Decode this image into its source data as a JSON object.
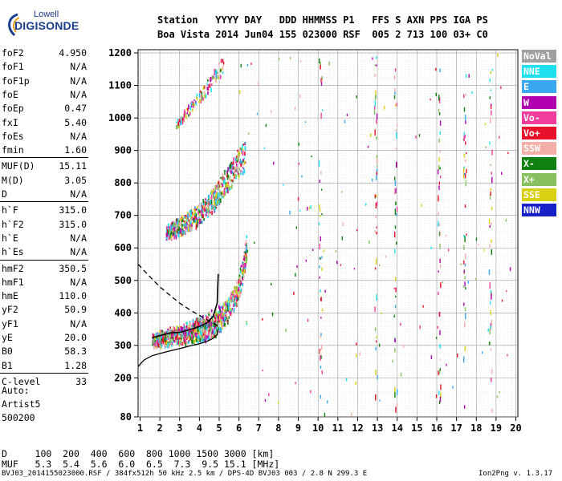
{
  "logo": {
    "top": "Lowell",
    "main": "DIGISONDE"
  },
  "header": {
    "row1": "Station   YYYY DAY   DDD HHMMSS P1   FFS S AXN PPS IGA PS",
    "row2": "Boa Vista 2014 Jun04 155 023000 RSF  005 2 713 100 03+ C0"
  },
  "params": [
    {
      "name": "foF2",
      "value": "4.950"
    },
    {
      "name": "foF1",
      "value": "N/A"
    },
    {
      "name": "foF1p",
      "value": "N/A"
    },
    {
      "name": "foE",
      "value": "N/A"
    },
    {
      "name": "foEp",
      "value": "0.47"
    },
    {
      "name": "fxI",
      "value": "5.40"
    },
    {
      "name": "foEs",
      "value": "N/A"
    },
    {
      "name": "fmin",
      "value": "1.60"
    },
    {
      "name": "MUF(D)",
      "value": "15.11"
    },
    {
      "name": "M(D)",
      "value": "3.05"
    },
    {
      "name": "D",
      "value": "N/A"
    },
    {
      "name": "h`F",
      "value": "315.0"
    },
    {
      "name": "h`F2",
      "value": "315.0"
    },
    {
      "name": "h`E",
      "value": "N/A"
    },
    {
      "name": "h`Es",
      "value": "N/A"
    },
    {
      "name": "hmF2",
      "value": "350.5"
    },
    {
      "name": "hmF1",
      "value": "N/A"
    },
    {
      "name": "hmE",
      "value": "110.0"
    },
    {
      "name": "yF2",
      "value": "50.9"
    },
    {
      "name": "yF1",
      "value": "N/A"
    },
    {
      "name": "yE",
      "value": "20.0"
    },
    {
      "name": "B0",
      "value": "58.3"
    },
    {
      "name": "B1",
      "value": "1.28"
    },
    {
      "name": "C-level",
      "value": "33"
    }
  ],
  "auto": {
    "line1": "Auto:",
    "line2": "Artist5",
    "line3": "500200"
  },
  "legend": [
    {
      "label": "NoVal",
      "color": "#a0a0a0"
    },
    {
      "label": "NNE",
      "color": "#20e0f0"
    },
    {
      "label": "E",
      "color": "#3aa8f0"
    },
    {
      "label": "W",
      "color": "#b000b0"
    },
    {
      "label": "Vo-",
      "color": "#f03c9c"
    },
    {
      "label": "Vo+",
      "color": "#e8102a"
    },
    {
      "label": "SSW",
      "color": "#f4b0a8"
    },
    {
      "label": "X-",
      "color": "#108010"
    },
    {
      "label": "X+",
      "color": "#88c060"
    },
    {
      "label": "SSE",
      "color": "#d8d010"
    },
    {
      "label": "NNW",
      "color": "#1820c8"
    }
  ],
  "muf_table": {
    "row1": "D     100  200  400  600  800 1000 1500 3000 [km]",
    "row2": "MUF   5.3  5.4  5.6  6.0  6.5  7.3  9.5 15.1 [MHz]"
  },
  "footer": {
    "left": "BVJ03_2014155023000.RSF / 384fx512h 50 kHz 2.5 km / DPS-4D BVJ03 003 / 2.8 N 299.3 E",
    "right": "Ion2Png v. 1.3.17"
  },
  "chart_data": {
    "type": "scatter",
    "x_ticks": [
      1,
      2,
      3,
      4,
      5,
      6,
      7,
      8,
      9,
      10,
      11,
      12,
      13,
      14,
      15,
      16,
      17,
      18,
      19,
      20
    ],
    "y_ticks": [
      80,
      200,
      300,
      400,
      500,
      600,
      700,
      800,
      900,
      1000,
      1100,
      1200
    ],
    "xlim": [
      0.9,
      20.1
    ],
    "ylim": [
      80,
      1210
    ],
    "grid": true,
    "legend_position": "right",
    "o_trace_f": [
      1.6,
      2.0,
      2.5,
      3.0,
      3.5,
      4.0,
      4.5,
      4.8,
      5.0,
      5.3,
      5.6,
      5.9,
      6.2,
      6.4
    ],
    "o_trace_h": [
      318,
      322,
      328,
      333,
      340,
      345,
      355,
      365,
      380,
      400,
      430,
      470,
      540,
      620
    ],
    "x_trace_f": [
      2.3,
      2.8,
      3.3,
      3.8,
      4.3,
      4.8,
      5.2,
      5.6,
      6.0,
      6.3
    ],
    "x_trace_h": [
      650,
      665,
      680,
      700,
      725,
      760,
      800,
      830,
      870,
      890
    ],
    "x2_trace_f": [
      1.8,
      2.2,
      2.6,
      3.0,
      3.4,
      3.8,
      4.2,
      4.6,
      5.0,
      5.4
    ],
    "x2_trace_h": [
      330,
      335,
      342,
      348,
      355,
      362,
      372,
      385,
      400,
      420
    ],
    "multi_trace_f": [
      2.8,
      3.2,
      3.6,
      4.0,
      4.4,
      4.8,
      5.2
    ],
    "multi_trace_h": [
      980,
      1010,
      1040,
      1070,
      1100,
      1135,
      1170
    ],
    "profile_f": [
      0.9,
      1.2,
      1.6,
      2.0,
      2.5,
      3.0,
      3.5,
      4.0,
      4.4,
      4.7,
      4.9,
      4.95
    ],
    "profile_h": [
      235,
      255,
      268,
      275,
      283,
      290,
      298,
      305,
      313,
      322,
      333,
      350
    ],
    "virtual_f": [
      1.6,
      2.0,
      2.5,
      3.0,
      3.5,
      4.0,
      4.4,
      4.7,
      4.9,
      4.95
    ],
    "virtual_h": [
      323,
      330,
      338,
      340,
      348,
      358,
      370,
      390,
      430,
      520
    ],
    "topside_f": [
      0.9,
      1.2,
      1.6,
      2.0,
      2.5,
      3.0,
      3.5,
      4.0,
      4.5,
      4.95
    ],
    "topside_h": [
      550,
      530,
      505,
      480,
      455,
      430,
      410,
      392,
      375,
      360
    ]
  }
}
